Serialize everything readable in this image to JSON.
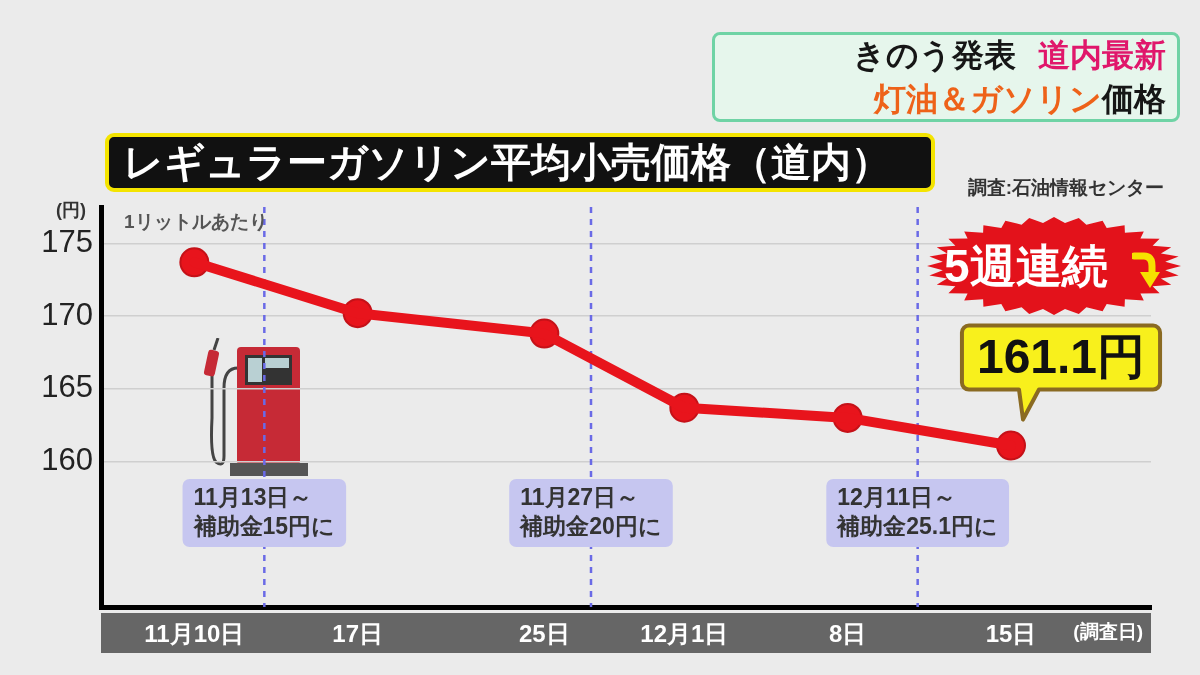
{
  "chart_data": {
    "type": "line",
    "title": "レギュラーガソリン平均小売価格（道内）",
    "xlabel": "(調査日)",
    "ylabel": "(円)",
    "annotations": [
      "きのう発表",
      "道内最新",
      "灯油＆ガソリン",
      "価格",
      "調査:石油情報センター",
      "1リットルあたり",
      "5週連続"
    ],
    "x": [
      "--11-10",
      "--11-17",
      "--11-25",
      "--12-01",
      "--12-08",
      "--12-15"
    ],
    "values": [
      173.7,
      170.2,
      168.8,
      163.7,
      163,
      161.1
    ],
    "value_labels": [
      null,
      null,
      null,
      null,
      null,
      "161.1円"
    ],
    "color": "#e8141c",
    "xlim": [
      "--11-06",
      "--12-21"
    ],
    "xticks": [
      {
        "value": "--11-10",
        "label": "11月10日"
      },
      {
        "value": "--11-17",
        "label": "17日"
      },
      {
        "value": "--11-25",
        "label": "25日"
      },
      {
        "value": "--12-01",
        "label": "12月1日"
      },
      {
        "value": "--12-08",
        "label": "8日"
      },
      {
        "value": "--12-15",
        "label": "15日"
      }
    ],
    "ylim": [
      150,
      177.5
    ],
    "yticks": [
      160,
      165,
      170,
      175
    ],
    "ref_lines": [
      {
        "axis": "x",
        "value": "--11-13",
        "label": "11月13日～補助金15円に",
        "color": "#6a6ae6",
        "line_style": "dashed"
      },
      {
        "axis": "x",
        "value": "--11-27",
        "label": "11月27日～補助金20円に",
        "color": "#6a6ae6",
        "line_style": "dashed"
      },
      {
        "axis": "x",
        "value": "--12-11",
        "label": "12月11日～補助金25.1円に",
        "color": "#6a6ae6",
        "line_style": "dashed"
      }
    ],
    "grid": "y",
    "legend": false,
    "marker": "circle",
    "line_style": "solid"
  }
}
